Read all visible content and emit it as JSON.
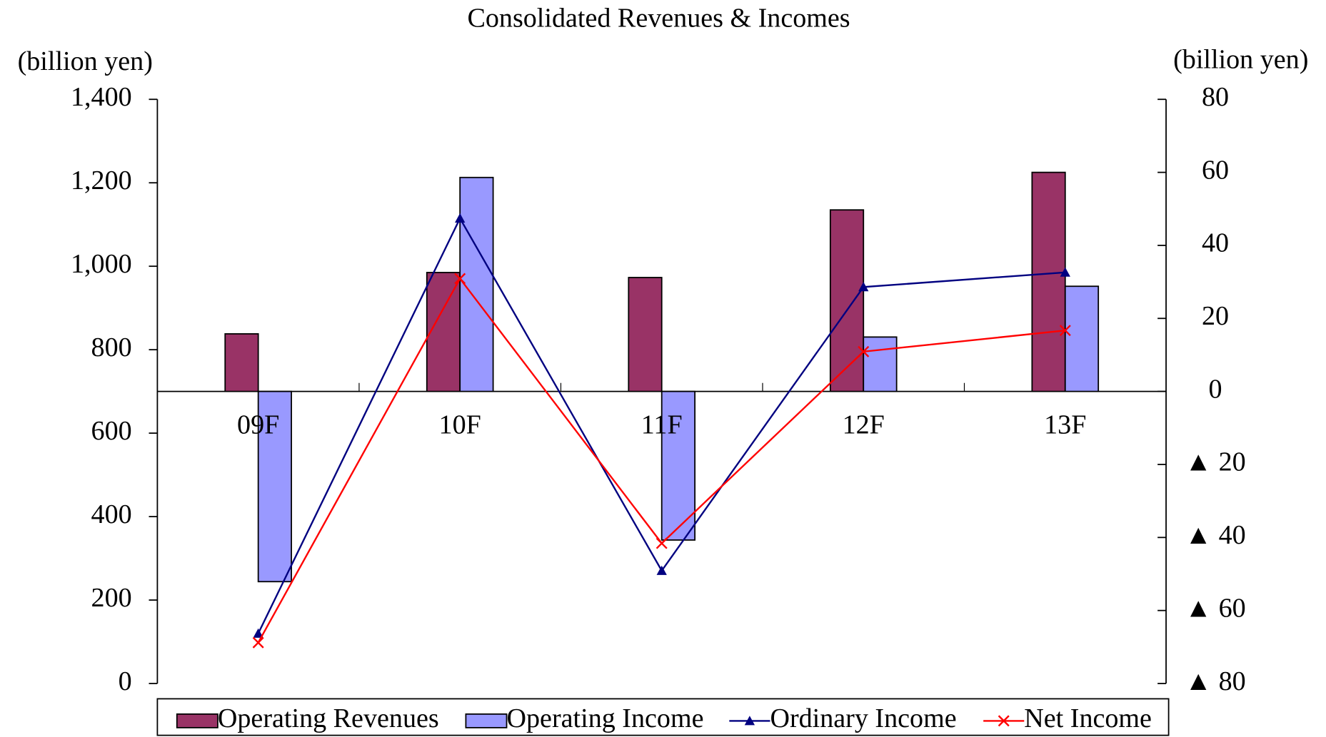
{
  "chart_data": {
    "type": "bar",
    "title": "Consolidated Revenues & Incomes",
    "ylabel": "(billion yen)",
    "y2label": "(billion yen)",
    "categories": [
      "09F",
      "10F",
      "11F",
      "12F",
      "13F"
    ],
    "series": [
      {
        "name": "Operating Revenues",
        "type": "bar",
        "axis": "y",
        "color": "#993366",
        "values": [
          838,
          985,
          973,
          1135,
          1225
        ]
      },
      {
        "name": "Operating Income",
        "type": "bar",
        "axis": "y2",
        "color": "#9999ff",
        "values": [
          -52.1,
          58.6,
          -40.7,
          14.9,
          28.8
        ]
      },
      {
        "name": "Ordinary Income",
        "type": "line",
        "axis": "y2",
        "color": "#000080",
        "marker": "triangle",
        "values": [
          -66.3,
          47.4,
          -49.1,
          28.6,
          32.6
        ]
      },
      {
        "name": "Net Income",
        "type": "line",
        "axis": "y2",
        "color": "#ff0000",
        "marker": "x",
        "values": [
          -68.8,
          30.9,
          -41.6,
          10.9,
          16.7
        ]
      }
    ],
    "ylim": [
      0,
      1400
    ],
    "yticks": [
      0,
      200,
      400,
      600,
      800,
      {
        "value": 1000,
        "label": "1,000"
      },
      {
        "value": 1200,
        "label": "1,200"
      },
      {
        "value": 1400,
        "label": "1,400"
      }
    ],
    "y2lim": [
      -80,
      80
    ],
    "y2ticks": [
      {
        "value": -80,
        "label": "▲ 80"
      },
      {
        "value": -60,
        "label": "▲ 60"
      },
      {
        "value": -40,
        "label": "▲ 40"
      },
      {
        "value": -20,
        "label": "▲ 20"
      },
      0,
      20,
      40,
      60,
      80
    ],
    "grid": false,
    "legend": "bottom"
  }
}
